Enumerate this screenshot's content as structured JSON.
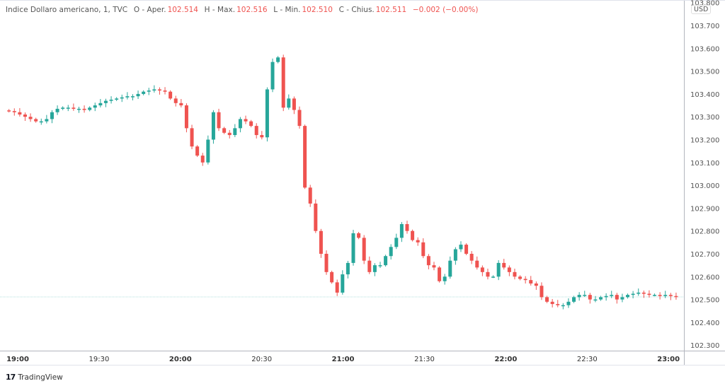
{
  "legend": {
    "symbol": "Indice Dollaro americano, 1, TVC",
    "open_label": "O - Aper.",
    "open": "102.514",
    "high_label": "H - Max.",
    "high": "102.516",
    "low_label": "L - Min.",
    "low": "102.510",
    "close_label": "C - Chius.",
    "close": "102.511",
    "change": "−0.002 (−0.00%)"
  },
  "currency": "USD",
  "brand": {
    "name": "TradingView",
    "logo_text": "17"
  },
  "colors": {
    "up": "#26a69a",
    "down": "#ef5350",
    "text": "#555555",
    "axis": "#b2b5be"
  },
  "chart_data": {
    "type": "candlestick",
    "title": "",
    "ylim": [
      102.3,
      103.8
    ],
    "y_ticks": [
      "103.800",
      "103.700",
      "103.600",
      "103.500",
      "103.400",
      "103.300",
      "103.200",
      "103.100",
      "103.000",
      "102.900",
      "102.800",
      "102.700",
      "102.600",
      "102.500",
      "102.400",
      "102.300"
    ],
    "x_ticks": [
      "19:00",
      "19:30",
      "20:00",
      "20:30",
      "21:00",
      "21:30",
      "22:00",
      "22:30",
      "23:00"
    ],
    "x_start": "18:56",
    "x_end": "23:04",
    "last_price": 102.511,
    "closes": [
      103.325,
      103.32,
      103.31,
      103.3,
      103.29,
      103.28,
      103.28,
      103.29,
      103.32,
      103.335,
      103.34,
      103.34,
      103.335,
      103.335,
      103.33,
      103.34,
      103.35,
      103.36,
      103.37,
      103.375,
      103.38,
      103.385,
      103.39,
      103.39,
      103.4,
      103.41,
      103.415,
      103.42,
      103.415,
      103.41,
      103.38,
      103.36,
      103.35,
      103.25,
      103.17,
      103.13,
      103.1,
      103.2,
      103.32,
      103.25,
      103.23,
      103.22,
      103.25,
      103.29,
      103.28,
      103.26,
      103.22,
      103.21,
      103.42,
      103.54,
      103.56,
      103.34,
      103.38,
      103.33,
      103.26,
      102.99,
      102.92,
      102.8,
      102.7,
      102.62,
      102.575,
      102.53,
      102.61,
      102.66,
      102.79,
      102.77,
      102.67,
      102.62,
      102.65,
      102.65,
      102.69,
      102.73,
      102.77,
      102.83,
      102.8,
      102.76,
      102.75,
      102.69,
      102.65,
      102.64,
      102.58,
      102.6,
      102.67,
      102.72,
      102.74,
      102.7,
      102.67,
      102.64,
      102.62,
      102.6,
      102.6,
      102.66,
      102.64,
      102.62,
      102.6,
      102.59,
      102.585,
      102.57,
      102.56,
      102.51,
      102.49,
      102.48,
      102.475,
      102.475,
      102.49,
      102.51,
      102.52,
      102.52,
      102.5,
      102.5,
      102.51,
      102.515,
      102.52,
      102.5,
      102.51,
      102.52,
      102.525,
      102.53,
      102.525,
      102.52,
      102.52,
      102.515,
      102.52,
      102.515,
      102.511
    ]
  }
}
